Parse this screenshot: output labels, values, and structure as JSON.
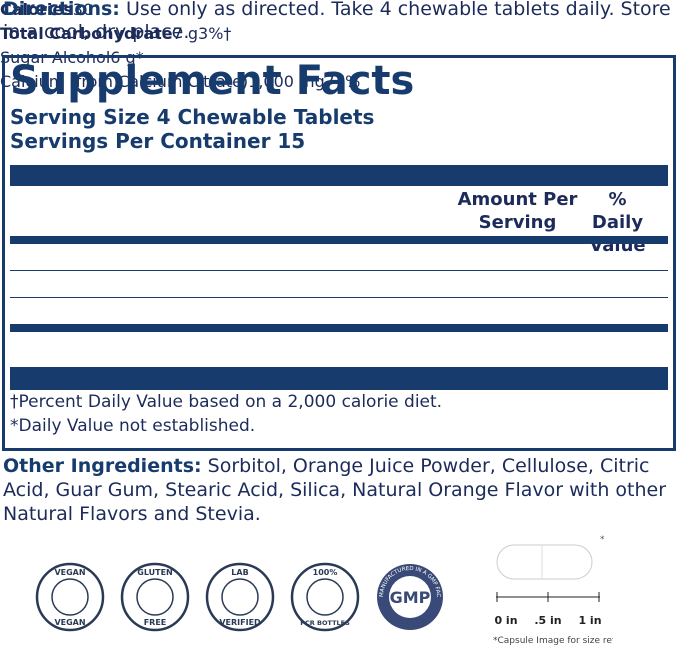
{
  "directions": {
    "label": "Directions:",
    "text": "Use only as directed. Take 4 chewable tablets daily. Store in a cool, dry place."
  },
  "facts": {
    "title": "Supplement Facts",
    "serving_size": "Serving Size 4 Chewable Tablets",
    "servings_per_container": "Servings Per Container 15",
    "header": {
      "amount": "Amount Per Serving",
      "daily_value": "% Daily Value"
    },
    "rows": [
      [
        "Calories",
        "30",
        ""
      ],
      [
        "Total Carbohydrate",
        "7 g",
        "3%†"
      ],
      [
        "Sugar Alcohol",
        "6 g",
        "*"
      ],
      [
        "Calcium (from Calcium Citrate)",
        "1,000 mg",
        "77%"
      ]
    ],
    "footnotes": [
      "†Percent Daily Value based on a 2,000 calorie diet.",
      "*Daily Value not established."
    ]
  },
  "other_ingredients": {
    "label": "Other Ingredients:",
    "text": "Sorbitol, Orange Juice Powder, Cellulose, Citric Acid, Guar Gum, Stearic Acid, Silica, Natural Orange Flavor with other Natural Flavors and Stevia."
  },
  "badges": [
    [
      "VEGAN",
      "VEGAN"
    ],
    [
      "GLUTEN",
      "FREE"
    ],
    [
      "LAB",
      "VERIFIED"
    ],
    [
      "100%",
      "PCR BOTTLES"
    ],
    [
      "GMP",
      "MANUFACTURED IN A GMP FACILITY"
    ]
  ],
  "capsule": {
    "asterisk": "*",
    "scale": [
      "0 in",
      ".5 in",
      "1 in"
    ],
    "caption": "*Capsule Image for size reference only."
  }
}
